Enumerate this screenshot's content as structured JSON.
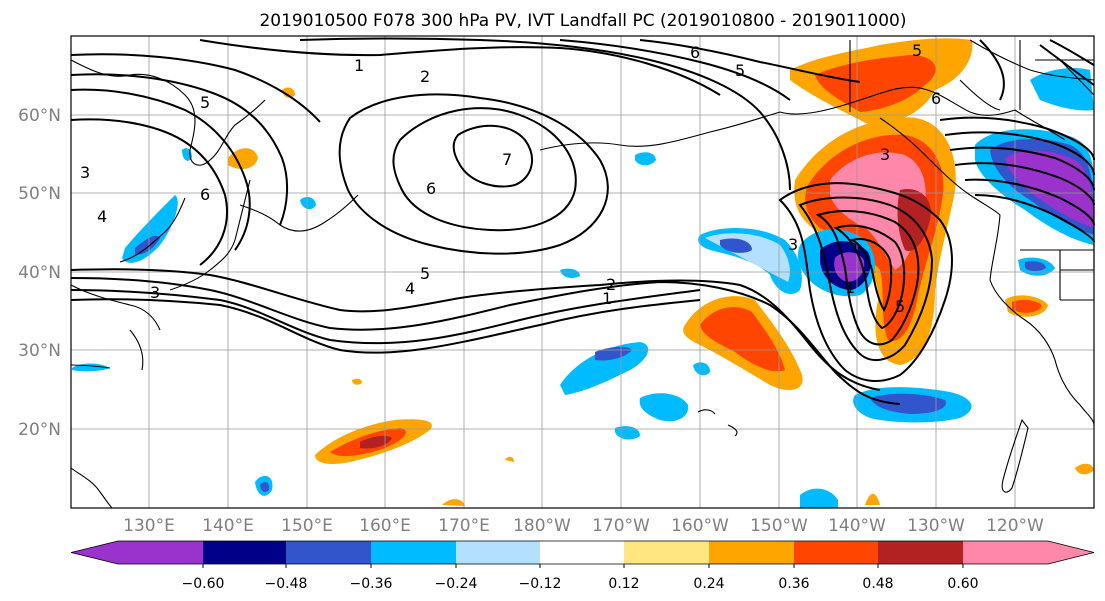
{
  "title": "2019010500 F078 300 hPa PV, IVT Landfall PC (2019010800 - 2019011000)",
  "lat_labels": [
    "60°N",
    "50°N",
    "40°N",
    "30°N",
    "20°N"
  ],
  "lon_labels": [
    "130°E",
    "140°E",
    "150°E",
    "160°E",
    "170°E",
    "180°W",
    "170°W",
    "160°W",
    "150°W",
    "140°W",
    "130°W",
    "120°W"
  ],
  "colorbar": {
    "tick_labels": [
      "−0.60",
      "−0.48",
      "−0.36",
      "−0.24",
      "−0.12",
      "0.12",
      "0.24",
      "0.36",
      "0.48",
      "0.60"
    ],
    "colors": [
      "#9933cc",
      "#000088",
      "#3355cc",
      "#00bbff",
      "#b3e0ff",
      "#ffffff",
      "#ffe680",
      "#ffa500",
      "#ff4500",
      "#b22222",
      "#ff88aa"
    ]
  },
  "contour_labels": [
    "1",
    "2",
    "5",
    "6",
    "6",
    "5",
    "4",
    "3",
    "6",
    "5",
    "4",
    "3",
    "2",
    "1",
    "5",
    "3",
    "6",
    "7",
    "1",
    "3",
    "5"
  ],
  "colors": {
    "purple": "#9933cc",
    "navy": "#000088",
    "blue": "#3355cc",
    "cyan": "#00bbff",
    "lightblue": "#b3e0ff",
    "yellow": "#ffe680",
    "orange": "#ffa500",
    "redorange": "#ff4500",
    "darkred": "#b22222",
    "pink": "#ff88aa"
  }
}
